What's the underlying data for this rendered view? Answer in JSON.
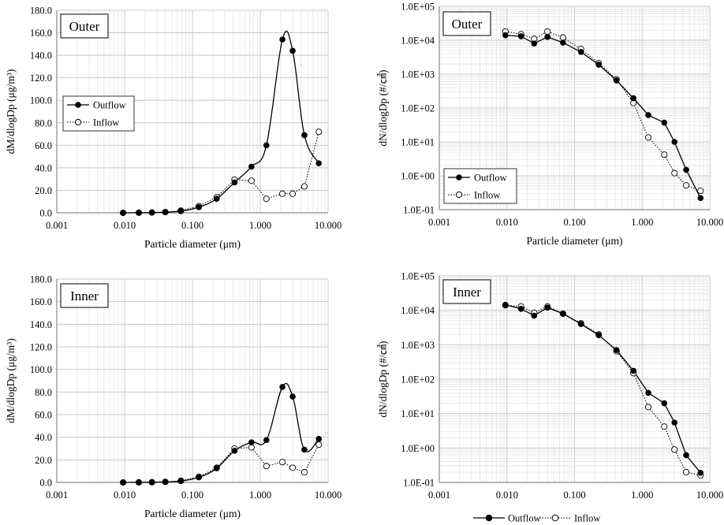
{
  "chart_data": [
    {
      "type": "line",
      "panel_label": "Outer",
      "x_scale": "log",
      "y_scale": "linear",
      "xlabel": "Particle diameter (μm)",
      "ylabel": "dM/dlogDp (μg/m³)",
      "xlim": [
        0.001,
        10
      ],
      "ylim": [
        0,
        180
      ],
      "x_tick_labels": [
        "0.001",
        "0.010",
        "0.100",
        "1.000",
        "10.000"
      ],
      "y_tick_labels": [
        "0.0",
        "20.0",
        "40.0",
        "60.0",
        "80.0",
        "100.0",
        "120.0",
        "140.0",
        "160.0",
        "180.0"
      ],
      "grid": true,
      "legend": "left",
      "x": [
        0.0095,
        0.0162,
        0.0253,
        0.0398,
        0.0675,
        0.1245,
        0.2278,
        0.4174,
        0.7427,
        1.2321,
        2.1218,
        3.0035,
        4.4738,
        7.3012
      ],
      "series": [
        {
          "name": "Outflow",
          "marker": "filled",
          "line": "solid",
          "smooth": true,
          "values": [
            0.0,
            0.1,
            0.2,
            0.5,
            1.5,
            5.0,
            12.5,
            27.0,
            41.0,
            60.0,
            154.0,
            144.0,
            69.0,
            44.0
          ]
        },
        {
          "name": "Inflow",
          "marker": "open",
          "line": "dotted",
          "smooth": false,
          "values": [
            0.0,
            0.1,
            0.3,
            0.7,
            2.0,
            6.0,
            14.0,
            29.5,
            28.5,
            12.5,
            17.0,
            17.0,
            23.5,
            72.0
          ]
        }
      ]
    },
    {
      "type": "line",
      "panel_label": "Outer",
      "x_scale": "log",
      "y_scale": "log",
      "xlabel": "Particle diameter (μm)",
      "ylabel": "dN/dlogDp (#/㎤)",
      "xlim": [
        0.001,
        10
      ],
      "ylim": [
        0.1,
        100000
      ],
      "x_tick_labels": [
        "0.001",
        "0.010",
        "0.100",
        "1.000",
        "10.000"
      ],
      "y_tick_labels": [
        "1.0E-01",
        "1.0E+00",
        "1.0E+01",
        "1.0E+02",
        "1.0E+03",
        "1.0E+04",
        "1.0E+05"
      ],
      "grid": true,
      "legend": "bottom-left",
      "x": [
        0.0095,
        0.0162,
        0.0253,
        0.0398,
        0.0675,
        0.1245,
        0.2278,
        0.4174,
        0.7427,
        1.2321,
        2.1218,
        3.0035,
        4.4738,
        7.3012
      ],
      "series": [
        {
          "name": "Outflow",
          "marker": "filled",
          "line": "solid",
          "smooth": false,
          "values": [
            14000,
            13000,
            8000,
            12500,
            8500,
            4500,
            1900,
            650,
            195,
            62,
            37,
            10,
            1.5,
            0.22
          ]
        },
        {
          "name": "Inflow",
          "marker": "open",
          "line": "dotted",
          "smooth": false,
          "values": [
            18000,
            15000,
            11000,
            18000,
            12000,
            5500,
            2100,
            700,
            140,
            13.5,
            4.2,
            1.2,
            0.52,
            0.36
          ]
        }
      ]
    },
    {
      "type": "line",
      "panel_label": "Inner",
      "x_scale": "log",
      "y_scale": "linear",
      "xlabel": "Particle diameter (μm)",
      "ylabel": "dM/dlogDp (μg/m³)",
      "xlim": [
        0.001,
        10
      ],
      "ylim": [
        0,
        180
      ],
      "x_tick_labels": [
        "0.001",
        "0.010",
        "0.100",
        "1.000",
        "10.000"
      ],
      "y_tick_labels": [
        "0.0",
        "20.0",
        "40.0",
        "60.0",
        "80.0",
        "100.0",
        "120.0",
        "140.0",
        "160.0",
        "180.0"
      ],
      "grid": true,
      "legend": "none",
      "x": [
        0.0095,
        0.0162,
        0.0253,
        0.0398,
        0.0675,
        0.1245,
        0.2278,
        0.4174,
        0.7427,
        1.2321,
        2.1218,
        3.0035,
        4.4738,
        7.3012
      ],
      "series": [
        {
          "name": "Outflow",
          "marker": "filled",
          "line": "solid",
          "smooth": true,
          "values": [
            0.0,
            0.1,
            0.2,
            0.5,
            1.2,
            4.5,
            12.5,
            28.0,
            35.5,
            37.5,
            84.5,
            76.0,
            29.0,
            38.5
          ]
        },
        {
          "name": "Inflow",
          "marker": "open",
          "line": "dotted",
          "smooth": false,
          "values": [
            0.0,
            0.1,
            0.2,
            0.5,
            1.5,
            5.0,
            13.0,
            30.0,
            31.0,
            14.5,
            18.0,
            13.0,
            9.0,
            33.5
          ]
        }
      ]
    },
    {
      "type": "line",
      "panel_label": "Inner",
      "x_scale": "log",
      "y_scale": "log",
      "xlabel": "",
      "ylabel": "dN/dlogDp (#/㎤)",
      "xlim": [
        0.001,
        10
      ],
      "ylim": [
        0.1,
        100000
      ],
      "x_tick_labels": [
        "0.001",
        "0.010",
        "0.100",
        "1.000",
        "10.000"
      ],
      "y_tick_labels": [
        "1.0E-01",
        "1.0E+00",
        "1.0E+01",
        "1.0E+02",
        "1.0E+03",
        "1.0E+04",
        "1.0E+05"
      ],
      "grid": true,
      "legend": "bottom",
      "x": [
        0.0095,
        0.0162,
        0.0253,
        0.0398,
        0.0675,
        0.1245,
        0.2278,
        0.4174,
        0.7427,
        1.2321,
        2.1218,
        3.0035,
        4.4738,
        7.3012
      ],
      "series": [
        {
          "name": "Outflow",
          "marker": "filled",
          "line": "solid",
          "smooth": false,
          "values": [
            14500,
            11000,
            7000,
            12000,
            8000,
            4000,
            1900,
            700,
            175,
            40,
            20,
            5.5,
            0.62,
            0.19
          ]
        },
        {
          "name": "Inflow",
          "marker": "open",
          "line": "dotted",
          "smooth": false,
          "values": [
            14000,
            13000,
            8500,
            13000,
            8000,
            4200,
            2000,
            650,
            150,
            15.5,
            4.2,
            0.9,
            0.2,
            0.16
          ]
        }
      ]
    }
  ]
}
